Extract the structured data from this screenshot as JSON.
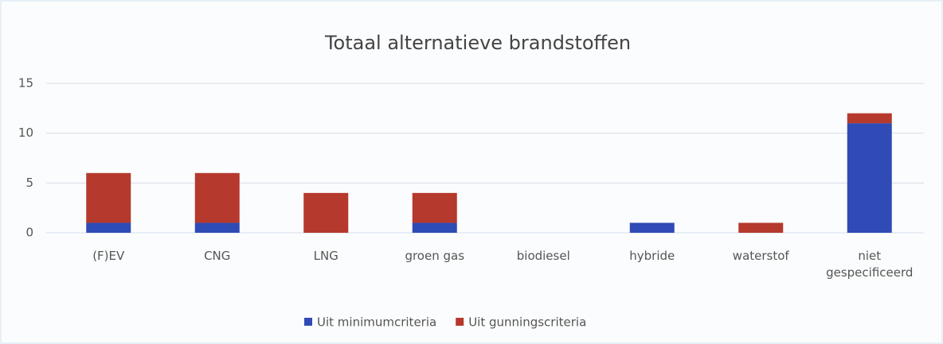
{
  "chart_data": {
    "type": "stacked_bar",
    "title": "Totaal alternatieve brandstoffen",
    "categories": [
      "(F)EV",
      "CNG",
      "LNG",
      "groen gas",
      "biodiesel",
      "hybride",
      "waterstof",
      "niet gespecificeerd"
    ],
    "series": [
      {
        "name": "Uit minimumcriteria",
        "color": "#2f4bb5",
        "values": [
          1,
          1,
          0,
          1,
          0,
          1,
          0,
          11
        ]
      },
      {
        "name": "Uit gunningscriteria",
        "color": "#b5392c",
        "values": [
          5,
          5,
          4,
          3,
          0,
          0,
          1,
          1
        ]
      }
    ],
    "ylim": [
      0,
      15
    ],
    "yticks": [
      0,
      5,
      10,
      15
    ],
    "grid": true,
    "legend": "bottom"
  }
}
